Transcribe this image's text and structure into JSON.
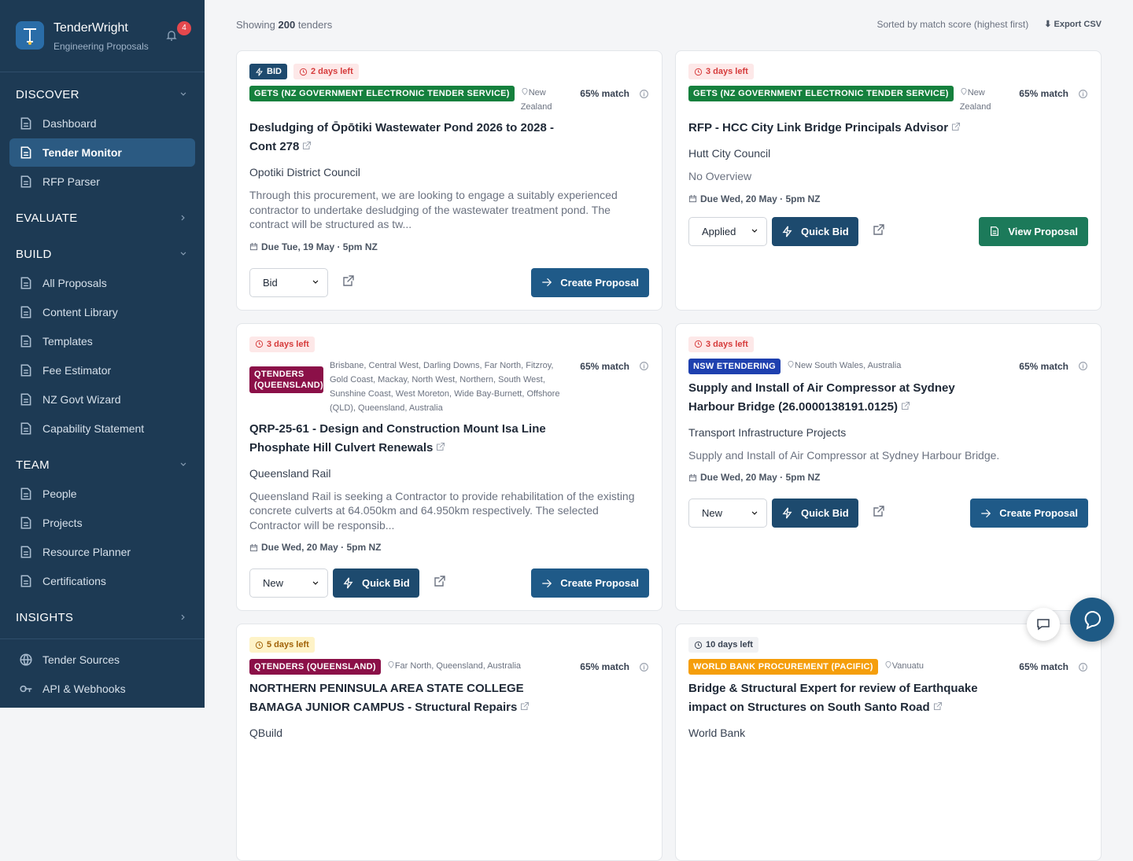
{
  "app": {
    "name": "TenderWright",
    "subtitle": "Engineering Proposals",
    "notifications": "4"
  },
  "nav": [
    {
      "title": "DISCOVER",
      "open": true,
      "items": [
        "Dashboard",
        "Tender Monitor",
        "RFP Parser"
      ],
      "active": 1
    },
    {
      "title": "EVALUATE",
      "open": false,
      "items": []
    },
    {
      "title": "BUILD",
      "open": true,
      "items": [
        "All Proposals",
        "Content Library",
        "Templates",
        "Fee Estimator",
        "NZ Govt Wizard",
        "Capability Statement"
      ]
    },
    {
      "title": "TEAM",
      "open": true,
      "items": [
        "People",
        "Projects",
        "Resource Planner",
        "Certifications"
      ]
    },
    {
      "title": "INSIGHTS",
      "open": false,
      "items": []
    }
  ],
  "footer_nav": [
    "Tender Sources",
    "API & Webhooks"
  ],
  "toolbar": {
    "showing": "Showing",
    "count": "200",
    "unit": "tenders",
    "sort": "Sorted by match score (highest first)",
    "export": "Export CSV"
  },
  "cards": [
    {
      "tag": "BID",
      "deadline": "2 days left",
      "urgency": "red",
      "source": "GETS (NZ GOVERNMENT ELECTRONIC TENDER SERVICE)",
      "source_color": "#15803d",
      "location": "New Zealand",
      "match": "65% match",
      "title": "Desludging of Ōpōtiki Wastewater Pond 2026 to 2028 - Cont 278",
      "org": "Opotiki District Council",
      "description": "Through this procurement, we are looking to engage a suitably experienced contractor to undertake desludging of the wastewater treatment pond. The contract will be structured as tw...",
      "due": "Due Tue, 19 May · 5pm NZ",
      "status": "Bid",
      "action": "Create Proposal"
    },
    {
      "deadline": "3 days left",
      "urgency": "red",
      "source": "GETS (NZ GOVERNMENT ELECTRONIC TENDER SERVICE)",
      "source_color": "#15803d",
      "location": "New Zealand",
      "match": "65% match",
      "title": "RFP - HCC City Link Bridge Principals Advisor",
      "org": "Hutt City Council",
      "description": "No Overview",
      "due": "Due Wed, 20 May · 5pm NZ",
      "status": "Applied",
      "quick": "Quick Bid",
      "action": "View Proposal",
      "action_style": "green"
    },
    {
      "deadline": "3 days left",
      "urgency": "red",
      "source": "QTENDERS (QUEENSLAND)",
      "source_color": "#8b1048",
      "location": "Brisbane, Central West, Darling Downs, Far North, Fitzroy, Gold Coast, Mackay, North West, Northern, South West, Sunshine Coast, West Moreton, Wide Bay-Burnett, Offshore (QLD), Queensland, Australia",
      "match": "65% match",
      "title": "QRP-25-61 - Design and Construction Mount Isa Line Phosphate Hill Culvert Renewals",
      "org": "Queensland Rail",
      "description": "Queensland Rail is seeking a Contractor to provide rehabilitation of the existing concrete culverts at 64.050km and 64.950km respectively. The selected Contractor will be responsib...",
      "due": "Due Wed, 20 May · 5pm NZ",
      "status": "New",
      "quick": "Quick Bid",
      "action": "Create Proposal"
    },
    {
      "deadline": "3 days left",
      "urgency": "red",
      "source": "NSW ETENDERING",
      "source_color": "#1e40af",
      "location": "New South Wales, Australia",
      "match": "65% match",
      "title": "Supply and Install of Air Compressor at Sydney Harbour Bridge (26.0000138191.0125)",
      "org": "Transport Infrastructure Projects",
      "description": "Supply and Install of Air Compressor at Sydney Harbour Bridge.",
      "due": "Due Wed, 20 May · 5pm NZ",
      "status": "New",
      "quick": "Quick Bid",
      "action": "Create Proposal"
    },
    {
      "deadline": "5 days left",
      "urgency": "yellow",
      "source": "QTENDERS (QUEENSLAND)",
      "source_color": "#8b1048",
      "location": "Far North, Queensland, Australia",
      "match": "65% match",
      "title": "NORTHERN PENINSULA AREA STATE COLLEGE BAMAGA JUNIOR CAMPUS - Structural Repairs",
      "org": "QBuild"
    },
    {
      "deadline": "10 days left",
      "urgency": "gray",
      "source": "WORLD BANK PROCUREMENT (PACIFIC)",
      "source_color": "#f59e0b",
      "location": "Vanuatu",
      "match": "65% match",
      "title": "Bridge & Structural Expert for review of Earthquake impact on Structures on South Santo Road",
      "org": "World Bank"
    }
  ]
}
